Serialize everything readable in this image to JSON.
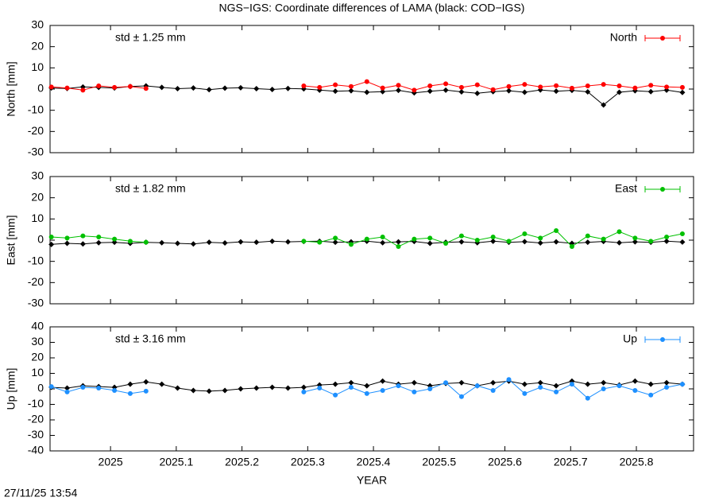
{
  "title": "NGS−IGS: Coordinate differences of LAMA (black: COD−IGS)",
  "x_label": "YEAR",
  "timestamp": "27/11/25 13:54",
  "chart_data": [
    {
      "type": "line",
      "y_label": "North [mm]",
      "annotation": "std ± 1.25 mm",
      "annotation_color": "#ff0000",
      "xlim": [
        2024.908,
        2025.887
      ],
      "xticks": [
        2025,
        2025.1,
        2025.2,
        2025.3,
        2025.4,
        2025.5,
        2025.6,
        2025.7,
        2025.8
      ],
      "ylim": [
        -30,
        30
      ],
      "yticks": [
        -30,
        -20,
        -10,
        0,
        10,
        20,
        30
      ],
      "x": [
        2024.91,
        2024.934,
        2024.958,
        2024.982,
        2025.006,
        2025.03,
        2025.054,
        2025.078,
        2025.102,
        2025.126,
        2025.15,
        2025.174,
        2025.198,
        2025.222,
        2025.246,
        2025.27,
        2025.294,
        2025.318,
        2025.342,
        2025.366,
        2025.39,
        2025.414,
        2025.438,
        2025.462,
        2025.486,
        2025.51,
        2025.534,
        2025.558,
        2025.582,
        2025.606,
        2025.63,
        2025.654,
        2025.678,
        2025.702,
        2025.726,
        2025.75,
        2025.774,
        2025.798,
        2025.822,
        2025.846,
        2025.87
      ],
      "series": [
        {
          "color": "#000000",
          "values": [
            0.5,
            0.3,
            1,
            0.8,
            0.5,
            1.2,
            1.5,
            0.8,
            0.2,
            0.5,
            -0.3,
            0.4,
            0.6,
            0.2,
            -0.2,
            0.3,
            0.1,
            -0.5,
            -1,
            -0.8,
            -1.5,
            -1.2,
            -0.6,
            -1.8,
            -1,
            -0.5,
            -1.3,
            -2,
            -1.2,
            -0.8,
            -1.5,
            -0.4,
            -1,
            -0.6,
            -1.3,
            -7.5,
            -1.5,
            -0.8,
            -1.2,
            -0.5,
            -1.6
          ]
        },
        {
          "name": "North",
          "color": "#ff0000",
          "values": [
            1,
            0.5,
            -0.5,
            1.5,
            0.8,
            1.2,
            0.3,
            null,
            null,
            null,
            null,
            null,
            null,
            null,
            null,
            null,
            1.5,
            0.8,
            2,
            1.2,
            3.5,
            0.5,
            1.8,
            -0.5,
            1.5,
            2.5,
            0.8,
            2,
            -0.3,
            1.2,
            2.2,
            1,
            1.6,
            0.4,
            1.5,
            2.2,
            1.5,
            0.5,
            1.8,
            1,
            0.8
          ]
        }
      ]
    },
    {
      "type": "line",
      "y_label": "East [mm]",
      "annotation": "std ± 1.82 mm",
      "annotation_color": "#00c000",
      "xlim": [
        2024.908,
        2025.887
      ],
      "xticks": [
        2025,
        2025.1,
        2025.2,
        2025.3,
        2025.4,
        2025.5,
        2025.6,
        2025.7,
        2025.8
      ],
      "ylim": [
        -30,
        30
      ],
      "yticks": [
        -30,
        -20,
        -10,
        0,
        10,
        20,
        30
      ],
      "x": [
        2024.91,
        2024.934,
        2024.958,
        2024.982,
        2025.006,
        2025.03,
        2025.054,
        2025.078,
        2025.102,
        2025.126,
        2025.15,
        2025.174,
        2025.198,
        2025.222,
        2025.246,
        2025.27,
        2025.294,
        2025.318,
        2025.342,
        2025.366,
        2025.39,
        2025.414,
        2025.438,
        2025.462,
        2025.486,
        2025.51,
        2025.534,
        2025.558,
        2025.582,
        2025.606,
        2025.63,
        2025.654,
        2025.678,
        2025.702,
        2025.726,
        2025.75,
        2025.774,
        2025.798,
        2025.822,
        2025.846,
        2025.87
      ],
      "series": [
        {
          "color": "#000000",
          "values": [
            -2,
            -1.5,
            -1.8,
            -1.2,
            -1,
            -1.5,
            -1,
            -1.2,
            -1.5,
            -1.8,
            -1,
            -1.3,
            -0.8,
            -1,
            -0.5,
            -0.8,
            -0.6,
            -0.5,
            -1,
            -0.8,
            -0.5,
            -1.2,
            -0.8,
            -0.6,
            -1.5,
            -1,
            -0.8,
            -1.2,
            -0.5,
            -1,
            -0.7,
            -1.3,
            -0.8,
            -1.5,
            -1,
            -0.6,
            -1.2,
            -0.8,
            -1,
            -0.5,
            -0.9
          ]
        },
        {
          "name": "East",
          "color": "#00c000",
          "values": [
            1.5,
            1,
            2,
            1.5,
            0.5,
            -0.5,
            -1,
            null,
            null,
            null,
            null,
            null,
            null,
            null,
            null,
            null,
            -0.5,
            -1,
            1,
            -2,
            0.5,
            1.5,
            -3,
            0.5,
            1,
            -1.5,
            2,
            0,
            1.5,
            -0.5,
            3,
            1,
            4.5,
            -3,
            2,
            0.5,
            4,
            1,
            -0.5,
            1.5,
            3
          ]
        }
      ]
    },
    {
      "type": "line",
      "y_label": "Up [mm]",
      "annotation": "std ± 3.16 mm",
      "annotation_color": "#1e90ff",
      "xlim": [
        2024.908,
        2025.887
      ],
      "xticks": [
        2025,
        2025.1,
        2025.2,
        2025.3,
        2025.4,
        2025.5,
        2025.6,
        2025.7,
        2025.8
      ],
      "ylim": [
        -40,
        40
      ],
      "yticks": [
        -40,
        -30,
        -20,
        -10,
        0,
        10,
        20,
        30,
        40
      ],
      "x": [
        2024.91,
        2024.934,
        2024.958,
        2024.982,
        2025.006,
        2025.03,
        2025.054,
        2025.078,
        2025.102,
        2025.126,
        2025.15,
        2025.174,
        2025.198,
        2025.222,
        2025.246,
        2025.27,
        2025.294,
        2025.318,
        2025.342,
        2025.366,
        2025.39,
        2025.414,
        2025.438,
        2025.462,
        2025.486,
        2025.51,
        2025.534,
        2025.558,
        2025.582,
        2025.606,
        2025.63,
        2025.654,
        2025.678,
        2025.702,
        2025.726,
        2025.75,
        2025.774,
        2025.798,
        2025.822,
        2025.846,
        2025.87
      ],
      "series": [
        {
          "color": "#000000",
          "values": [
            1,
            0.5,
            2,
            1.5,
            1,
            3,
            4.5,
            3,
            0.5,
            -1,
            -1.5,
            -1,
            0,
            0.5,
            1,
            0.5,
            1,
            2.5,
            3,
            4,
            2,
            5,
            3,
            4,
            2,
            3.5,
            4,
            2,
            4,
            5,
            3,
            4,
            2,
            5,
            3,
            4,
            2.5,
            5,
            3,
            4,
            3
          ]
        },
        {
          "name": "Up",
          "color": "#1e90ff",
          "values": [
            1.5,
            -2,
            1,
            0.5,
            -1,
            -3,
            -1.5,
            null,
            null,
            null,
            null,
            null,
            null,
            null,
            null,
            null,
            -2,
            0.5,
            -4,
            1,
            -3,
            -1,
            2,
            -2,
            0,
            4,
            -5,
            2,
            -1,
            6,
            -3,
            1,
            -2,
            3,
            -6,
            0,
            2,
            -1,
            -4,
            1,
            3
          ]
        }
      ]
    }
  ]
}
